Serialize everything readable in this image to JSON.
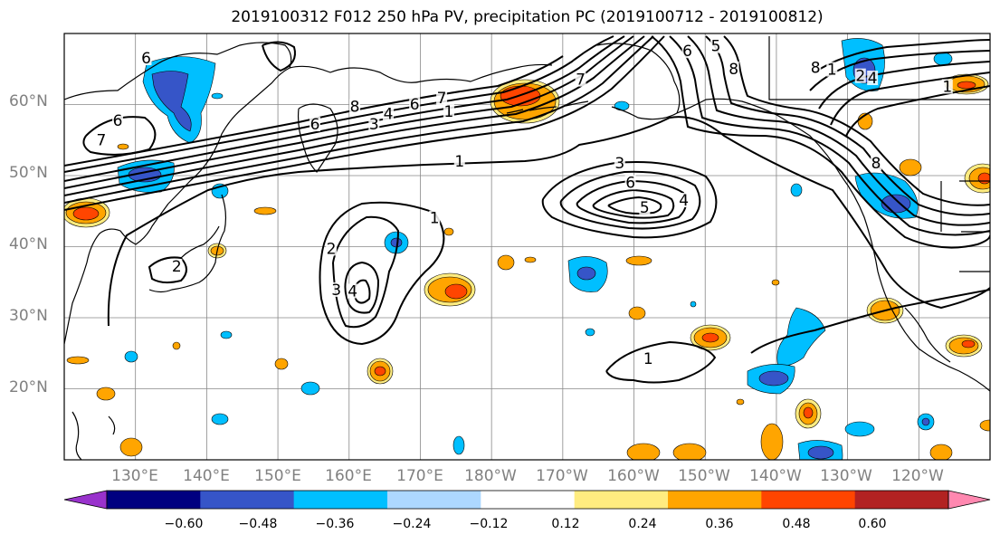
{
  "title": "2019100312 F012 250 hPa PV, precipitation PC (2019100712 - 2019100812)",
  "map": {
    "projection": "cylindrical",
    "lon_range": [
      120,
      250
    ],
    "lat_range": [
      10,
      70
    ],
    "gridlines": true,
    "gridline_color": "#888888",
    "land_outline_color": "#000000"
  },
  "lat_labels": [
    "60°N",
    "50°N",
    "40°N",
    "30°N",
    "20°N"
  ],
  "lon_labels": [
    "130°E",
    "140°E",
    "150°E",
    "160°E",
    "170°E",
    "180°W",
    "170°W",
    "160°W",
    "150°W",
    "140°W",
    "130°W",
    "120°W"
  ],
  "contour_labels": [
    {
      "text": "6",
      "lon": 131.5,
      "lat": 66.3
    },
    {
      "text": "7",
      "lon": 125.2,
      "lat": 54.8
    },
    {
      "text": "6",
      "lon": 127.5,
      "lat": 57.5
    },
    {
      "text": "8",
      "lon": 160.8,
      "lat": 59.5
    },
    {
      "text": "6",
      "lon": 169.2,
      "lat": 59.8
    },
    {
      "text": "7",
      "lon": 173.0,
      "lat": 60.7
    },
    {
      "text": "4",
      "lon": 165.5,
      "lat": 58.5
    },
    {
      "text": "3",
      "lon": 163.5,
      "lat": 57.0
    },
    {
      "text": "6",
      "lon": 155.2,
      "lat": 57.0
    },
    {
      "text": "1",
      "lon": 175.5,
      "lat": 51.8
    },
    {
      "text": "1",
      "lon": 172.0,
      "lat": 43.8
    },
    {
      "text": "2",
      "lon": 157.5,
      "lat": 39.5
    },
    {
      "text": "3",
      "lon": 158.2,
      "lat": 33.7
    },
    {
      "text": "4",
      "lon": 160.5,
      "lat": 33.5
    },
    {
      "text": "2",
      "lon": 135.8,
      "lat": 37.0
    },
    {
      "text": "3",
      "lon": 198.0,
      "lat": 51.5
    },
    {
      "text": "6",
      "lon": 199.5,
      "lat": 48.8
    },
    {
      "text": "5",
      "lon": 201.5,
      "lat": 45.3
    },
    {
      "text": "4",
      "lon": 207.0,
      "lat": 46.3
    },
    {
      "text": "6",
      "lon": 207.5,
      "lat": 67.3
    },
    {
      "text": "5",
      "lon": 211.5,
      "lat": 68.0
    },
    {
      "text": "8",
      "lon": 214.0,
      "lat": 64.8
    },
    {
      "text": "7",
      "lon": 192.5,
      "lat": 63.3
    },
    {
      "text": "8",
      "lon": 225.5,
      "lat": 65.0
    },
    {
      "text": "1",
      "lon": 227.8,
      "lat": 64.7
    },
    {
      "text": "8",
      "lon": 234.0,
      "lat": 51.5
    },
    {
      "text": "2",
      "lon": 231.8,
      "lat": 63.8
    },
    {
      "text": "4",
      "lon": 233.5,
      "lat": 63.5
    },
    {
      "text": "1",
      "lon": 244.0,
      "lat": 62.3
    },
    {
      "text": "1",
      "lon": 202.0,
      "lat": 24.0
    },
    {
      "text": "1",
      "lon": 174.0,
      "lat": 58.8
    }
  ],
  "colorbar": {
    "colors": [
      "#9932CC",
      "#000080",
      "#3655C8",
      "#00BFFF",
      "#ADD8FF",
      "#FFFFFF",
      "#FFEC80",
      "#FFA500",
      "#FF4500",
      "#B22222",
      "#FF88B0"
    ],
    "tick_labels": [
      "−0.60",
      "−0.48",
      "−0.36",
      "−0.24",
      "−0.12",
      "0.12",
      "0.24",
      "0.36",
      "0.48",
      "0.60"
    ],
    "extend": "both"
  }
}
